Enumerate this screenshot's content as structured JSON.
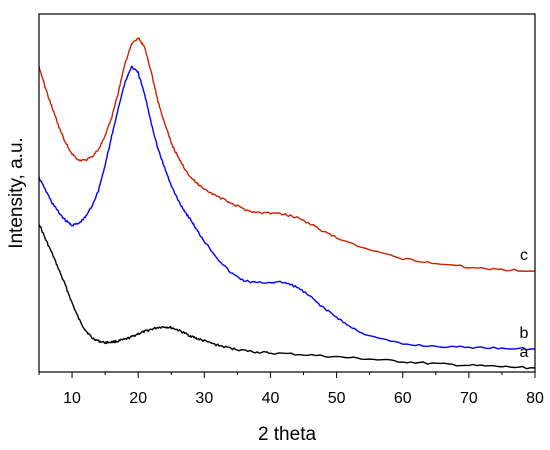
{
  "chart_data": {
    "type": "line",
    "xlabel": "2 theta",
    "ylabel": "Intensity, a.u.",
    "xlim": [
      5,
      80
    ],
    "x_ticks": [
      "10",
      "20",
      "30",
      "40",
      "50",
      "60",
      "70",
      "80"
    ],
    "grid": false,
    "legend": "none",
    "y_ticks_shown": false,
    "series": [
      {
        "name": "a",
        "color": "#000000",
        "x": [
          5,
          6,
          7,
          8,
          9,
          10,
          11,
          12,
          13,
          14,
          15,
          16,
          17,
          18,
          19,
          20,
          21,
          22,
          23,
          24,
          25,
          26,
          27,
          28,
          29,
          30,
          32,
          34,
          36,
          38,
          40,
          45,
          50,
          55,
          60,
          65,
          70,
          75,
          80
        ],
        "y": [
          0.455,
          0.405,
          0.36,
          0.31,
          0.26,
          0.205,
          0.155,
          0.12,
          0.095,
          0.085,
          0.08,
          0.082,
          0.085,
          0.09,
          0.098,
          0.108,
          0.115,
          0.122,
          0.128,
          0.13,
          0.127,
          0.12,
          0.11,
          0.1,
          0.092,
          0.085,
          0.072,
          0.062,
          0.055,
          0.05,
          0.047,
          0.042,
          0.035,
          0.028,
          0.02,
          0.013,
          0.008,
          0.004,
          0.0
        ]
      },
      {
        "name": "b",
        "color": "#0000ff",
        "x": [
          5,
          6,
          7,
          8,
          9,
          10,
          11,
          12,
          13,
          14,
          15,
          16,
          17,
          18,
          19,
          20,
          21,
          22,
          23,
          24,
          25,
          26,
          27,
          28,
          29,
          30,
          32,
          34,
          36,
          38,
          40,
          42,
          44,
          46,
          48,
          50,
          52,
          55,
          60,
          65,
          70,
          75,
          80
        ],
        "y": [
          0.6,
          0.56,
          0.52,
          0.49,
          0.465,
          0.45,
          0.455,
          0.475,
          0.51,
          0.56,
          0.64,
          0.73,
          0.82,
          0.9,
          0.95,
          0.93,
          0.86,
          0.77,
          0.69,
          0.63,
          0.575,
          0.53,
          0.495,
          0.465,
          0.43,
          0.4,
          0.345,
          0.3,
          0.275,
          0.268,
          0.27,
          0.27,
          0.255,
          0.225,
          0.19,
          0.16,
          0.13,
          0.1,
          0.075,
          0.068,
          0.065,
          0.063,
          0.06
        ]
      },
      {
        "name": "c",
        "color": "#cc2200",
        "x": [
          5,
          6,
          7,
          8,
          9,
          10,
          11,
          12,
          13,
          14,
          15,
          16,
          17,
          18,
          19,
          20,
          21,
          22,
          23,
          24,
          25,
          26,
          27,
          28,
          29,
          30,
          32,
          34,
          36,
          38,
          40,
          42,
          44,
          46,
          48,
          50,
          55,
          60,
          65,
          70,
          75,
          80
        ],
        "y": [
          0.95,
          0.88,
          0.82,
          0.76,
          0.71,
          0.675,
          0.655,
          0.655,
          0.665,
          0.69,
          0.73,
          0.79,
          0.87,
          0.96,
          1.02,
          1.04,
          1.01,
          0.93,
          0.84,
          0.77,
          0.71,
          0.665,
          0.63,
          0.6,
          0.58,
          0.565,
          0.54,
          0.52,
          0.5,
          0.49,
          0.488,
          0.485,
          0.475,
          0.455,
          0.43,
          0.41,
          0.37,
          0.345,
          0.33,
          0.318,
          0.31,
          0.305
        ]
      }
    ]
  }
}
